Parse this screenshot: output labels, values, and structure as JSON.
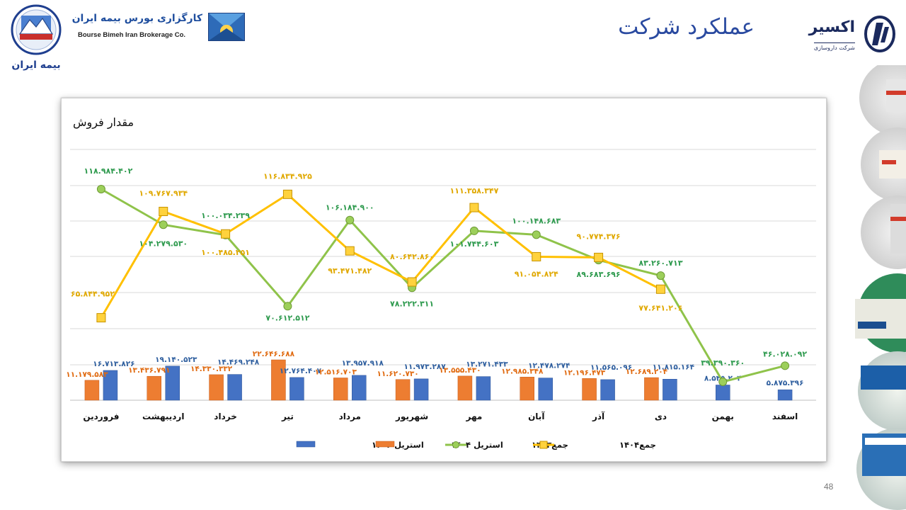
{
  "header": {
    "insurer_name": "بیمه ایران",
    "broker_name_fa": "کارگزاری بورس بیمه ایران",
    "broker_name_en": "Bourse Bimeh Iran Brokerage Co.",
    "slide_title": "عملکرد شرکت",
    "company_name": "اکسیر",
    "company_subtitle": "شرکت داروسازی"
  },
  "page_number": "48",
  "colors": {
    "bar_1403": "#4472c4",
    "bar_1404": "#ed7d31",
    "line_1403": "#8fc34a",
    "line_1404": "#ffc000",
    "label_1403_total": "#2e9a4e",
    "label_1404_total": "#e0a800",
    "label_bar_1403": "#2f5f9f",
    "label_bar_1404": "#e06a10"
  },
  "chart_data": {
    "type": "bar",
    "title": "مقدار فروش",
    "categories": [
      "فروردین",
      "اردیبهشت",
      "خرداد",
      "تیر",
      "مرداد",
      "شهریور",
      "مهر",
      "آبان",
      "آذر",
      "دی",
      "بهمن",
      "اسفند"
    ],
    "series": [
      {
        "name": "استریل ۱۴۰۳",
        "kind": "bar",
        "color": "#4472c4",
        "values": [
          16713826,
          19140523,
          14469248,
          12764407,
          13957918,
          11973287,
          13271433,
          12478274,
          11565096,
          11815164,
          8545204,
          5875396
        ],
        "labels": [
          "۱۶.۷۱۳.۸۲۶",
          "۱۹.۱۴۰.۵۲۳",
          "۱۴.۴۶۹.۲۴۸",
          "۱۲.۷۶۴.۴۰۷",
          "۱۳.۹۵۷.۹۱۸",
          "۱۱.۹۷۳.۲۸۷",
          "۱۳.۲۷۱.۴۳۳",
          "۱۲.۴۷۸.۲۷۴",
          "۱۱.۵۶۵.۰۹۶",
          "۱۱.۸۱۵.۱۶۴",
          "۸.۵۴۵.۲۰۴",
          "۵.۸۷۵.۳۹۶"
        ]
      },
      {
        "name": "استریل ۱۴۰۴",
        "kind": "bar",
        "color": "#ed7d31",
        "values": [
          11179583,
          13436791,
          14330332,
          22646688,
          12516703,
          11620730,
          13555430,
          12985348,
          12196473,
          12689204,
          null,
          null
        ],
        "labels": [
          "۱۱.۱۷۹.۵۸۳",
          "۱۳.۴۳۶.۷۹۱",
          "۱۴.۳۳۰.۳۳۲",
          "۲۲.۶۴۶.۶۸۸",
          "۱۲.۵۱۶.۷۰۳",
          "۱۱.۶۲۰.۷۳۰",
          "۱۳.۵۵۵.۴۳۰",
          "۱۲.۹۸۵.۳۴۸",
          "۱۲.۱۹۶.۴۷۳",
          "۱۲.۶۸۹.۲۰۴",
          "",
          ""
        ]
      },
      {
        "name": "جمع۱۴۰۳",
        "kind": "line",
        "color": "#8fc34a",
        "values": [
          118984402,
          104279530,
          100034239,
          70612512,
          106184900,
          78222311,
          101744603,
          100148683,
          89683696,
          83260713,
          39390360,
          46028092
        ],
        "labels": [
          "۱۱۸.۹۸۴.۴۰۲",
          "۱۰۴.۲۷۹.۵۳۰",
          "۱۰۰.۰۳۴.۲۳۹",
          "۷۰.۶۱۲.۵۱۲",
          "۱۰۶.۱۸۴.۹۰۰",
          "۷۸.۲۲۲.۳۱۱",
          "۱۰۱.۷۴۴.۶۰۳",
          "۱۰۰.۱۴۸.۶۸۳",
          "۸۹.۶۸۳.۶۹۶",
          "۸۳.۲۶۰.۷۱۳",
          "۳۹.۳۹۰.۳۶۰",
          "۴۶.۰۲۸.۰۹۲"
        ]
      },
      {
        "name": "جمع۱۴۰۴",
        "kind": "line",
        "color": "#ffc000",
        "values": [
          65844952,
          109767934,
          100485251,
          116834925,
          93471482,
          80642860,
          111358347,
          91054824,
          90774376,
          77641206,
          null,
          null
        ],
        "labels": [
          "۶۵.۸۴۴.۹۵۲",
          "۱۰۹.۷۶۷.۹۳۴",
          "۱۰۰.۴۸۵.۲۵۱",
          "۱۱۶.۸۳۴.۹۲۵",
          "۹۳.۴۷۱.۴۸۲",
          "۸۰.۶۴۲.۸۶۰",
          "۱۱۱.۳۵۸.۳۴۷",
          "۹۱.۰۵۴.۸۲۴",
          "۹۰.۷۷۴.۳۷۶",
          "۷۷.۶۴۱.۲۰۶",
          "",
          ""
        ]
      }
    ],
    "legend": [
      "استریل ۱۴۰۳",
      "استریل ۱۴۰۴",
      "جمع۱۴۰۳",
      "جمع۱۴۰۴"
    ],
    "legend_position": "bottom",
    "grid": true
  }
}
